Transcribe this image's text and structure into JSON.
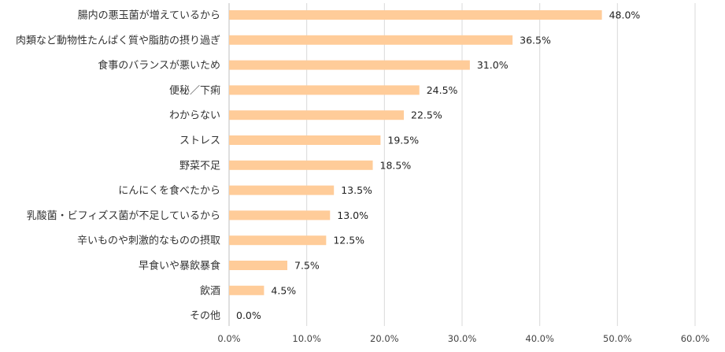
{
  "chart_data": {
    "type": "bar",
    "orientation": "horizontal",
    "categories": [
      "腸内の悪玉菌が増えているから",
      "肉類など動物性たんぱく質や脂肪の摂り過ぎ",
      "食事のバランスが悪いため",
      "便秘／下痢",
      "わからない",
      "ストレス",
      "野菜不足",
      "にんにくを食べたから",
      "乳酸菌・ビフィズス菌が不足しているから",
      "辛いものや刺激的なものの摂取",
      "早食いや暴飲暴食",
      "飲酒",
      "その他"
    ],
    "values": [
      48.0,
      36.5,
      31.0,
      24.5,
      22.5,
      19.5,
      18.5,
      13.5,
      13.0,
      12.5,
      7.5,
      4.5,
      0.0
    ],
    "value_labels": [
      "48.0%",
      "36.5%",
      "31.0%",
      "24.5%",
      "22.5%",
      "19.5%",
      "18.5%",
      "13.5%",
      "13.0%",
      "12.5%",
      "7.5%",
      "4.5%",
      "0.0%"
    ],
    "x_ticks": [
      "0.0%",
      "10.0%",
      "20.0%",
      "30.0%",
      "40.0%",
      "50.0%",
      "60.0%"
    ],
    "xlim": [
      0,
      60
    ],
    "grid": true,
    "legend": false,
    "title": "",
    "xlabel": "",
    "ylabel": "",
    "colors": {
      "bar": "#FFCC99",
      "grid": "#D9D9D9",
      "axis": "#BFBFBF"
    }
  }
}
